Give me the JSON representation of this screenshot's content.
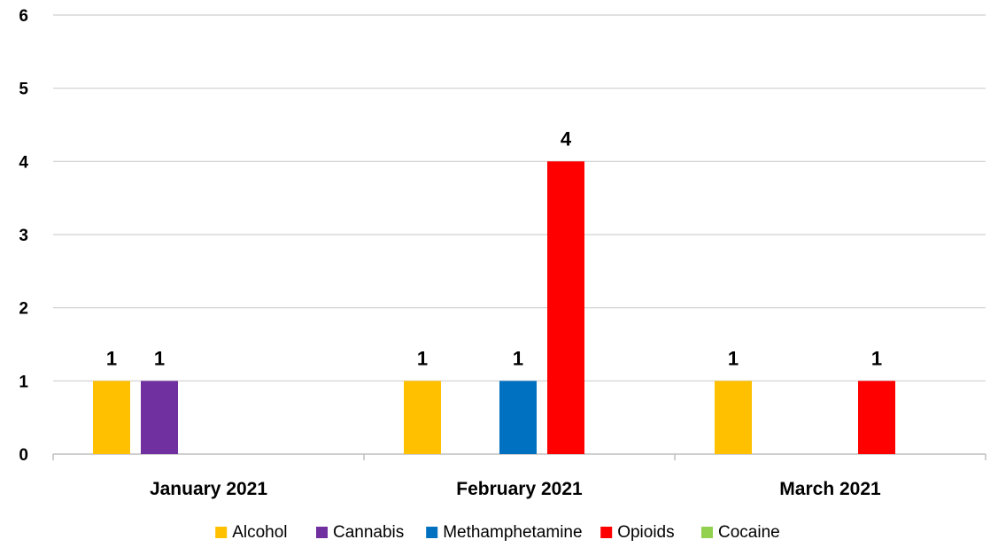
{
  "chart_data": {
    "type": "bar",
    "categories": [
      "January 2021",
      "February 2021",
      "March 2021"
    ],
    "series": [
      {
        "name": "Alcohol",
        "color": "#FFC000",
        "values": [
          1,
          1,
          1
        ]
      },
      {
        "name": "Cannabis",
        "color": "#7030A0",
        "values": [
          1,
          0,
          0
        ]
      },
      {
        "name": "Methamphetamine",
        "color": "#0070C0",
        "values": [
          0,
          1,
          0
        ]
      },
      {
        "name": "Opioids",
        "color": "#FF0000",
        "values": [
          0,
          4,
          1
        ]
      },
      {
        "name": "Cocaine",
        "color": "#92D050",
        "values": [
          0,
          0,
          0
        ]
      }
    ],
    "ylim": [
      0,
      6
    ],
    "yticks": [
      "0",
      "1",
      "2",
      "3",
      "4",
      "5",
      "6"
    ],
    "grid": true,
    "legend": "bottom",
    "data_labels": true,
    "title": "",
    "xlabel": "",
    "ylabel": ""
  }
}
